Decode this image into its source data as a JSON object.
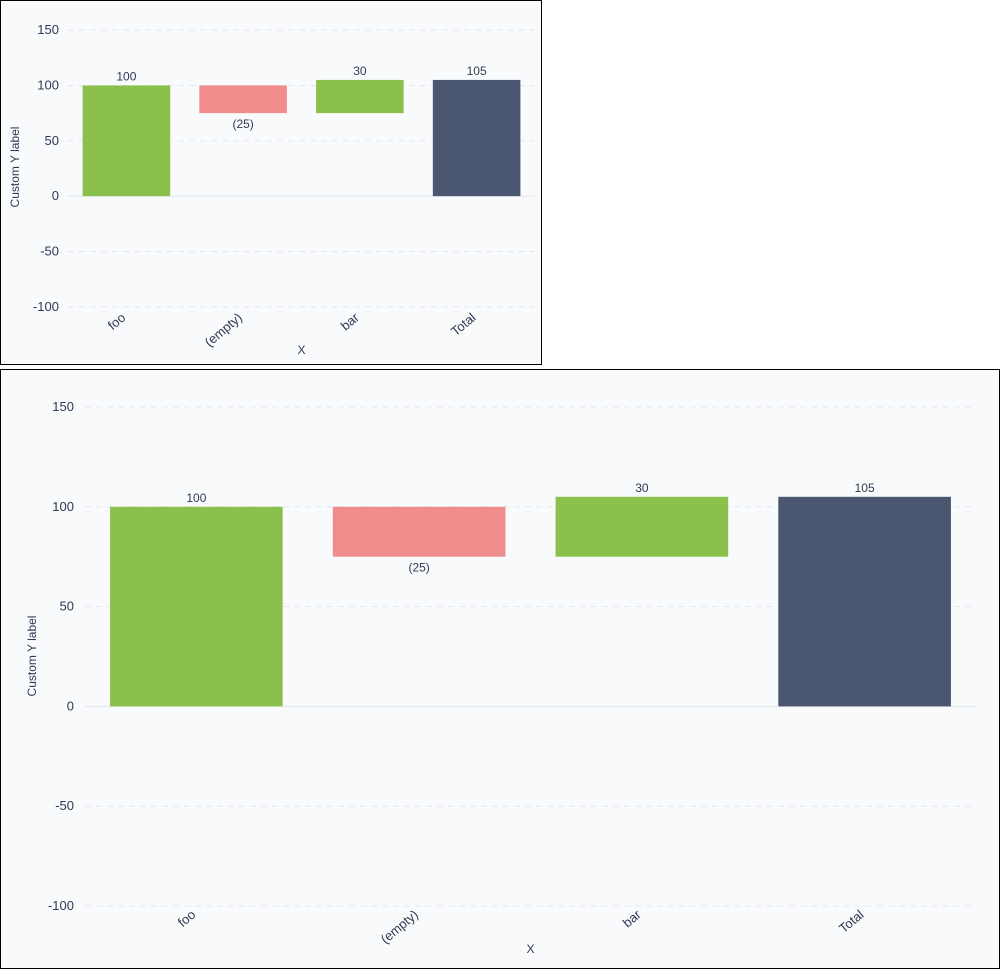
{
  "chart_data": [
    {
      "type": "bar",
      "subtype": "waterfall",
      "title": "",
      "xlabel": "X",
      "ylabel": "Custom Y label",
      "categories": [
        "foo",
        "(empty)",
        "bar",
        "Total"
      ],
      "values": [
        100,
        -25,
        30,
        105
      ],
      "bar_bases": [
        0,
        75,
        75,
        0
      ],
      "bar_tops": [
        100,
        100,
        105,
        105
      ],
      "bar_colors": [
        "#8bc04d",
        "#f08c8c",
        "#8bc04d",
        "#4b5771"
      ],
      "data_labels": [
        "100",
        "(25)",
        "30",
        "105"
      ],
      "y_ticks": [
        150,
        100,
        50,
        0,
        -50,
        -100
      ],
      "y_tick_labels": [
        "150",
        "100",
        "50",
        "0",
        "-50",
        "-100"
      ],
      "ylim": [
        -110,
        160
      ],
      "grid": true,
      "legend": "none"
    },
    {
      "type": "bar",
      "subtype": "waterfall",
      "title": "",
      "xlabel": "X",
      "ylabel": "Custom Y label",
      "categories": [
        "foo",
        "(empty)",
        "bar",
        "Total"
      ],
      "values": [
        100,
        -25,
        30,
        105
      ],
      "bar_bases": [
        0,
        75,
        75,
        0
      ],
      "bar_tops": [
        100,
        100,
        105,
        105
      ],
      "bar_colors": [
        "#8bc04d",
        "#f08c8c",
        "#8bc04d",
        "#4b5771"
      ],
      "data_labels": [
        "100",
        "(25)",
        "30",
        "105"
      ],
      "y_ticks": [
        150,
        100,
        50,
        0,
        -50,
        -100
      ],
      "y_tick_labels": [
        "150",
        "100",
        "50",
        "0",
        "-50",
        "-100"
      ],
      "ylim": [
        -105,
        155
      ],
      "grid": true,
      "legend": "none"
    }
  ]
}
